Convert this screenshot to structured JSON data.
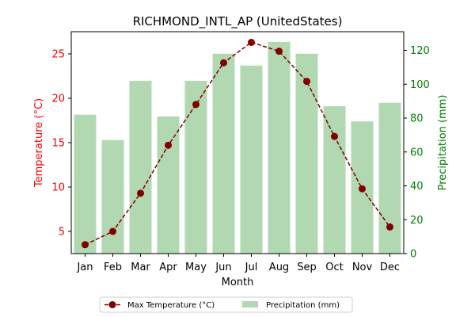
{
  "chart_data": {
    "type": "bar+line",
    "title": "RICHMOND_INTL_AP (UnitedStates)",
    "xlabel": "Month",
    "categories": [
      "Jan",
      "Feb",
      "Mar",
      "Apr",
      "May",
      "Jun",
      "Jul",
      "Aug",
      "Sep",
      "Oct",
      "Nov",
      "Dec"
    ],
    "left_axis": {
      "label": "Temperature (°C)",
      "color": "#ff0000",
      "ylim": [
        2.5,
        27.5
      ],
      "ticks": [
        5,
        10,
        15,
        20,
        25
      ]
    },
    "right_axis": {
      "label": "Precipitation (mm)",
      "color": "#008000",
      "ylim": [
        0,
        131
      ],
      "ticks": [
        0,
        20,
        40,
        60,
        80,
        100,
        120
      ]
    },
    "series": [
      {
        "name": "Max Temperature (°C)",
        "kind": "line",
        "axis": "left",
        "color": "#800000",
        "values": [
          3.5,
          5.0,
          9.3,
          14.7,
          19.3,
          24.0,
          26.3,
          25.3,
          21.9,
          15.7,
          9.8,
          5.5
        ]
      },
      {
        "name": "Precipitation (mm)",
        "kind": "bar",
        "axis": "right",
        "color": "#b1d8b1",
        "values": [
          82,
          67,
          102,
          81,
          102,
          118,
          111,
          125,
          118,
          87,
          78,
          89
        ]
      }
    ],
    "legend": {
      "placement": "bottom-center",
      "entries": [
        "Max Temperature (°C)",
        "Precipitation (mm)"
      ]
    },
    "grid": false
  }
}
